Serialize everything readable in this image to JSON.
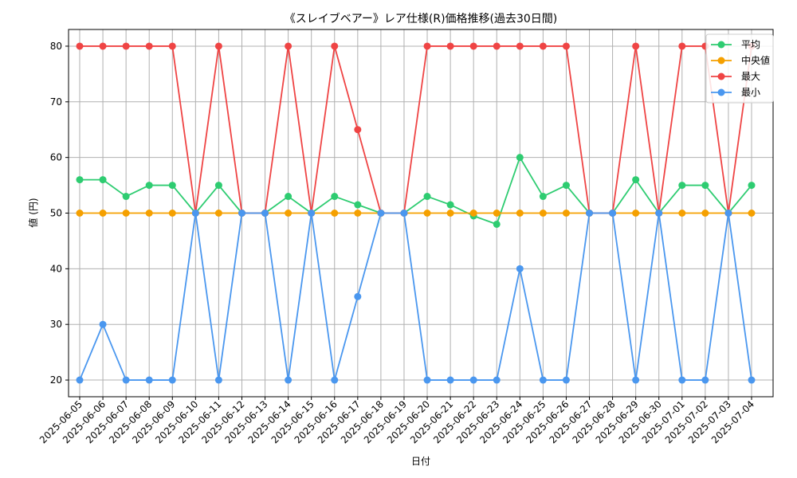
{
  "chart_data": {
    "type": "line",
    "title": "《スレイブベアー》レア仕様(R)価格推移(過去30日間)",
    "xlabel": "日付",
    "ylabel": "値 (円)",
    "ylim": [
      17,
      83
    ],
    "yticks": [
      20,
      30,
      40,
      50,
      60,
      70,
      80
    ],
    "grid": true,
    "legend_position": "top-right",
    "categories": [
      "2025-06-05",
      "2025-06-06",
      "2025-06-07",
      "2025-06-08",
      "2025-06-09",
      "2025-06-10",
      "2025-06-11",
      "2025-06-12",
      "2025-06-13",
      "2025-06-14",
      "2025-06-15",
      "2025-06-16",
      "2025-06-17",
      "2025-06-18",
      "2025-06-19",
      "2025-06-20",
      "2025-06-21",
      "2025-06-22",
      "2025-06-23",
      "2025-06-24",
      "2025-06-25",
      "2025-06-26",
      "2025-06-27",
      "2025-06-28",
      "2025-06-29",
      "2025-06-30",
      "2025-07-01",
      "2025-07-02",
      "2025-07-03",
      "2025-07-04"
    ],
    "series": [
      {
        "name": "平均",
        "color": "#2ecc71",
        "values": [
          56,
          56,
          53,
          55,
          55,
          50,
          55,
          50,
          50,
          53,
          50,
          53,
          51.5,
          50,
          50,
          53,
          51.5,
          49.5,
          48,
          60,
          53,
          55,
          50,
          50,
          56,
          50,
          55,
          55,
          50,
          55
        ]
      },
      {
        "name": "中央値",
        "color": "#f5a000",
        "values": [
          50,
          50,
          50,
          50,
          50,
          50,
          50,
          50,
          50,
          50,
          50,
          50,
          50,
          50,
          50,
          50,
          50,
          50,
          50,
          50,
          50,
          50,
          50,
          50,
          50,
          50,
          50,
          50,
          50,
          50
        ]
      },
      {
        "name": "最大",
        "color": "#ef4444",
        "values": [
          80,
          80,
          80,
          80,
          80,
          50,
          80,
          50,
          50,
          80,
          50,
          80,
          65,
          50,
          50,
          80,
          80,
          80,
          80,
          80,
          80,
          80,
          50,
          50,
          80,
          50,
          80,
          80,
          50,
          80
        ]
      },
      {
        "name": "最小",
        "color": "#4a97ef",
        "values": [
          20,
          30,
          20,
          20,
          20,
          50,
          20,
          50,
          50,
          20,
          50,
          20,
          35,
          50,
          50,
          20,
          20,
          20,
          20,
          40,
          20,
          20,
          50,
          50,
          20,
          50,
          20,
          20,
          50,
          20
        ]
      }
    ]
  }
}
